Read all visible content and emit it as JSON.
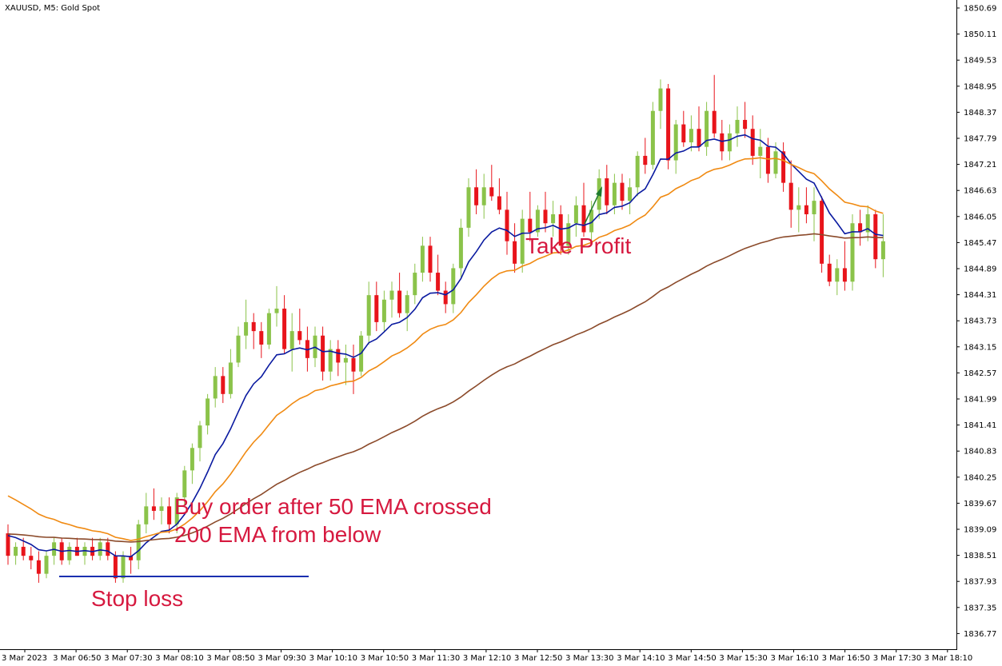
{
  "window": {
    "title": "XAUUSD, M5:  Gold Spot"
  },
  "colors": {
    "bull": "#8bc34a",
    "bear": "#e8141b",
    "ema_fast": "#0a1aa0",
    "ema_mid": "#f08a12",
    "ema_slow": "#8b4a2a",
    "arrow": "#1e7a2e",
    "annotation": "#d6193f",
    "stop_line": "#1a2fb0"
  },
  "annotations": {
    "buy_line1": "Buy order after 50 EMA crossed",
    "buy_line2": "200 EMA from below",
    "take_profit": "Take Profit",
    "stop_loss": "Stop loss"
  },
  "chart_data": {
    "type": "candlestick",
    "symbol": "XAUUSD",
    "timeframe": "M5",
    "instrument": "Gold Spot",
    "ylim": [
      1836.1,
      1850.9
    ],
    "y_ticks": [
      "1850.69",
      "1850.11",
      "1849.53",
      "1848.95",
      "1848.37",
      "1847.79",
      "1847.21",
      "1846.63",
      "1846.05",
      "1845.47",
      "1844.89",
      "1844.31",
      "1843.73",
      "1843.15",
      "1842.57",
      "1841.99",
      "1841.41",
      "1840.83",
      "1840.25",
      "1839.67",
      "1839.09",
      "1838.51",
      "1837.93",
      "1837.35",
      "1836.77"
    ],
    "x_ticks": [
      "3 Mar 2023",
      "3 Mar 06:50",
      "3 Mar 07:30",
      "3 Mar 08:10",
      "3 Mar 08:50",
      "3 Mar 09:30",
      "3 Mar 10:10",
      "3 Mar 10:50",
      "3 Mar 11:30",
      "3 Mar 12:10",
      "3 Mar 12:50",
      "3 Mar 13:30",
      "3 Mar 14:10",
      "3 Mar 14:50",
      "3 Mar 15:30",
      "3 Mar 16:10",
      "3 Mar 16:50",
      "3 Mar 17:30",
      "3 Mar 18:10"
    ],
    "candles": [
      [
        1839.0,
        1839.2,
        1838.3,
        1838.5
      ],
      [
        1838.5,
        1838.8,
        1838.3,
        1838.7
      ],
      [
        1838.7,
        1838.9,
        1838.4,
        1838.5
      ],
      [
        1838.5,
        1838.7,
        1838.2,
        1838.4
      ],
      [
        1838.4,
        1838.6,
        1837.9,
        1838.1
      ],
      [
        1838.1,
        1838.6,
        1838.0,
        1838.5
      ],
      [
        1838.5,
        1838.9,
        1838.3,
        1838.8
      ],
      [
        1838.8,
        1838.9,
        1838.3,
        1838.4
      ],
      [
        1838.4,
        1838.8,
        1838.3,
        1838.7
      ],
      [
        1838.7,
        1838.9,
        1838.5,
        1838.5
      ],
      [
        1838.5,
        1838.8,
        1838.3,
        1838.7
      ],
      [
        1838.7,
        1838.9,
        1838.4,
        1838.5
      ],
      [
        1838.5,
        1838.9,
        1838.4,
        1838.8
      ],
      [
        1838.8,
        1838.9,
        1838.4,
        1838.5
      ],
      [
        1838.5,
        1838.6,
        1837.9,
        1838.0
      ],
      [
        1838.0,
        1838.6,
        1837.9,
        1838.5
      ],
      [
        1838.5,
        1838.7,
        1838.1,
        1838.4
      ],
      [
        1838.4,
        1839.3,
        1838.2,
        1839.2
      ],
      [
        1839.2,
        1839.9,
        1839.0,
        1839.6
      ],
      [
        1839.6,
        1840.0,
        1839.3,
        1839.5
      ],
      [
        1839.5,
        1839.8,
        1839.2,
        1839.6
      ],
      [
        1839.6,
        1839.8,
        1839.0,
        1839.2
      ],
      [
        1839.2,
        1839.9,
        1839.0,
        1839.8
      ],
      [
        1839.8,
        1840.5,
        1839.6,
        1840.4
      ],
      [
        1840.4,
        1841.0,
        1840.1,
        1840.9
      ],
      [
        1840.9,
        1841.5,
        1840.6,
        1841.4
      ],
      [
        1841.4,
        1842.1,
        1841.2,
        1842.0
      ],
      [
        1842.0,
        1842.7,
        1841.8,
        1842.5
      ],
      [
        1842.5,
        1842.7,
        1841.9,
        1842.1
      ],
      [
        1842.1,
        1843.1,
        1842.0,
        1842.8
      ],
      [
        1842.8,
        1843.6,
        1842.7,
        1843.4
      ],
      [
        1843.4,
        1844.2,
        1843.1,
        1843.7
      ],
      [
        1843.7,
        1843.9,
        1843.1,
        1843.5
      ],
      [
        1843.5,
        1843.7,
        1842.9,
        1843.2
      ],
      [
        1843.2,
        1844.0,
        1843.1,
        1843.9
      ],
      [
        1843.9,
        1844.5,
        1843.6,
        1844.0
      ],
      [
        1844.0,
        1844.3,
        1843.0,
        1843.1
      ],
      [
        1843.1,
        1843.9,
        1842.6,
        1843.5
      ],
      [
        1843.5,
        1844.0,
        1843.2,
        1843.3
      ],
      [
        1843.3,
        1843.6,
        1842.6,
        1842.9
      ],
      [
        1842.9,
        1843.6,
        1842.7,
        1843.4
      ],
      [
        1843.4,
        1843.6,
        1842.4,
        1842.6
      ],
      [
        1842.6,
        1843.3,
        1842.4,
        1843.1
      ],
      [
        1843.1,
        1843.3,
        1842.5,
        1842.8
      ],
      [
        1842.8,
        1843.2,
        1842.3,
        1842.9
      ],
      [
        1842.9,
        1843.2,
        1842.1,
        1842.6
      ],
      [
        1842.6,
        1843.5,
        1842.5,
        1843.4
      ],
      [
        1843.4,
        1844.6,
        1843.2,
        1844.3
      ],
      [
        1844.3,
        1844.6,
        1843.5,
        1843.7
      ],
      [
        1843.7,
        1844.4,
        1843.5,
        1844.2
      ],
      [
        1844.2,
        1844.6,
        1843.8,
        1844.4
      ],
      [
        1844.4,
        1844.8,
        1843.8,
        1843.9
      ],
      [
        1843.9,
        1844.4,
        1843.5,
        1844.3
      ],
      [
        1844.3,
        1845.0,
        1844.1,
        1844.8
      ],
      [
        1844.8,
        1845.6,
        1844.6,
        1845.4
      ],
      [
        1845.4,
        1845.6,
        1844.6,
        1844.8
      ],
      [
        1844.8,
        1845.2,
        1844.3,
        1844.4
      ],
      [
        1844.4,
        1844.6,
        1843.9,
        1844.1
      ],
      [
        1844.1,
        1845.0,
        1843.9,
        1844.9
      ],
      [
        1844.9,
        1846.0,
        1844.7,
        1845.8
      ],
      [
        1845.8,
        1846.9,
        1845.6,
        1846.7
      ],
      [
        1846.7,
        1847.1,
        1846.1,
        1846.3
      ],
      [
        1846.3,
        1847.0,
        1846.0,
        1846.7
      ],
      [
        1846.7,
        1847.2,
        1846.4,
        1846.5
      ],
      [
        1846.5,
        1846.9,
        1846.1,
        1846.2
      ],
      [
        1846.2,
        1846.6,
        1845.2,
        1845.5
      ],
      [
        1845.5,
        1845.9,
        1844.8,
        1845.0
      ],
      [
        1845.0,
        1846.2,
        1844.8,
        1846.0
      ],
      [
        1846.0,
        1846.6,
        1845.5,
        1845.7
      ],
      [
        1845.7,
        1846.3,
        1845.6,
        1846.2
      ],
      [
        1846.2,
        1846.6,
        1845.7,
        1845.9
      ],
      [
        1845.9,
        1846.4,
        1845.6,
        1846.1
      ],
      [
        1846.1,
        1846.3,
        1845.2,
        1845.4
      ],
      [
        1845.4,
        1846.1,
        1845.2,
        1845.9
      ],
      [
        1845.9,
        1846.5,
        1845.6,
        1846.3
      ],
      [
        1846.3,
        1846.8,
        1845.6,
        1845.7
      ],
      [
        1845.7,
        1846.4,
        1845.5,
        1846.2
      ],
      [
        1846.2,
        1847.1,
        1846.0,
        1846.9
      ],
      [
        1846.9,
        1847.2,
        1846.1,
        1846.3
      ],
      [
        1846.3,
        1847.0,
        1846.1,
        1846.8
      ],
      [
        1846.8,
        1847.0,
        1846.2,
        1846.4
      ],
      [
        1846.4,
        1846.9,
        1846.1,
        1846.7
      ],
      [
        1846.7,
        1847.5,
        1846.5,
        1847.4
      ],
      [
        1847.4,
        1847.8,
        1847.0,
        1847.2
      ],
      [
        1847.2,
        1848.6,
        1847.1,
        1848.4
      ],
      [
        1848.4,
        1849.1,
        1848.0,
        1848.9
      ],
      [
        1848.9,
        1849.0,
        1847.1,
        1847.3
      ],
      [
        1847.3,
        1848.2,
        1847.0,
        1848.1
      ],
      [
        1848.1,
        1848.4,
        1847.6,
        1847.7
      ],
      [
        1847.7,
        1848.3,
        1847.5,
        1848.0
      ],
      [
        1848.0,
        1848.5,
        1847.5,
        1847.6
      ],
      [
        1847.6,
        1848.6,
        1847.4,
        1848.4
      ],
      [
        1848.4,
        1849.2,
        1847.8,
        1847.9
      ],
      [
        1847.9,
        1848.2,
        1847.3,
        1847.5
      ],
      [
        1847.5,
        1848.1,
        1847.3,
        1847.9
      ],
      [
        1847.9,
        1848.5,
        1847.6,
        1848.2
      ],
      [
        1848.2,
        1848.6,
        1847.8,
        1848.0
      ],
      [
        1848.0,
        1848.3,
        1847.2,
        1847.4
      ],
      [
        1847.4,
        1848.0,
        1846.9,
        1847.6
      ],
      [
        1847.6,
        1847.8,
        1846.8,
        1847.0
      ],
      [
        1847.0,
        1847.7,
        1846.9,
        1847.5
      ],
      [
        1847.5,
        1847.7,
        1846.6,
        1846.8
      ],
      [
        1846.8,
        1847.3,
        1845.8,
        1846.2
      ],
      [
        1846.2,
        1846.7,
        1845.7,
        1846.3
      ],
      [
        1846.3,
        1846.7,
        1845.9,
        1846.1
      ],
      [
        1846.1,
        1846.7,
        1845.5,
        1846.4
      ],
      [
        1846.4,
        1846.5,
        1844.8,
        1845.0
      ],
      [
        1845.0,
        1845.2,
        1844.5,
        1844.6
      ],
      [
        1844.6,
        1845.1,
        1844.3,
        1844.9
      ],
      [
        1844.9,
        1845.5,
        1844.4,
        1844.6
      ],
      [
        1844.6,
        1846.1,
        1844.4,
        1845.9
      ],
      [
        1845.9,
        1846.2,
        1845.4,
        1845.7
      ],
      [
        1845.7,
        1846.3,
        1845.5,
        1846.1
      ],
      [
        1846.1,
        1846.2,
        1844.9,
        1845.1
      ],
      [
        1845.1,
        1846.1,
        1844.7,
        1845.5
      ]
    ]
  }
}
